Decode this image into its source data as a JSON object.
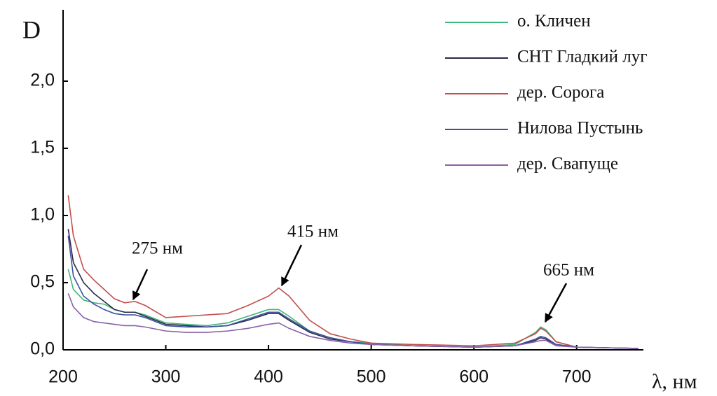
{
  "chart_data": {
    "type": "line",
    "y_label": "D",
    "x_label": "λ, нм",
    "annotations": [
      "275 нм",
      "415 нм",
      "665 нм"
    ],
    "x": [
      205,
      210,
      220,
      230,
      240,
      250,
      260,
      270,
      280,
      300,
      320,
      340,
      360,
      380,
      400,
      410,
      420,
      440,
      460,
      480,
      500,
      540,
      600,
      640,
      660,
      665,
      670,
      680,
      700,
      760
    ],
    "series": [
      {
        "name": "о. Кличен",
        "color": "#3cb878",
        "values": [
          0.6,
          0.45,
          0.37,
          0.35,
          0.34,
          0.3,
          0.28,
          0.28,
          0.26,
          0.2,
          0.19,
          0.18,
          0.2,
          0.25,
          0.3,
          0.3,
          0.25,
          0.14,
          0.09,
          0.06,
          0.05,
          0.03,
          0.02,
          0.04,
          0.13,
          0.17,
          0.15,
          0.06,
          0.02,
          0.01
        ]
      },
      {
        "name": "СНТ Гладкий луг",
        "color": "#2a2a48",
        "values": [
          0.9,
          0.65,
          0.5,
          0.42,
          0.36,
          0.3,
          0.28,
          0.28,
          0.25,
          0.19,
          0.18,
          0.17,
          0.18,
          0.22,
          0.27,
          0.27,
          0.22,
          0.13,
          0.08,
          0.06,
          0.04,
          0.03,
          0.02,
          0.03,
          0.07,
          0.09,
          0.08,
          0.04,
          0.02,
          0.01
        ]
      },
      {
        "name": "дер. Сорога",
        "color": "#c0504d",
        "values": [
          1.15,
          0.85,
          0.6,
          0.52,
          0.45,
          0.38,
          0.35,
          0.36,
          0.33,
          0.24,
          0.25,
          0.26,
          0.27,
          0.33,
          0.4,
          0.46,
          0.4,
          0.22,
          0.12,
          0.08,
          0.05,
          0.04,
          0.03,
          0.05,
          0.12,
          0.16,
          0.14,
          0.06,
          0.02,
          0.01
        ]
      },
      {
        "name": "Нилова Пустынь",
        "color": "#4050a0",
        "values": [
          0.85,
          0.55,
          0.4,
          0.34,
          0.3,
          0.27,
          0.26,
          0.26,
          0.24,
          0.18,
          0.17,
          0.17,
          0.18,
          0.23,
          0.28,
          0.28,
          0.23,
          0.14,
          0.09,
          0.06,
          0.04,
          0.03,
          0.02,
          0.03,
          0.08,
          0.1,
          0.09,
          0.04,
          0.02,
          0.01
        ]
      },
      {
        "name": "дер. Свапуще",
        "color": "#8a60a8",
        "values": [
          0.42,
          0.32,
          0.24,
          0.21,
          0.2,
          0.19,
          0.18,
          0.18,
          0.17,
          0.14,
          0.13,
          0.13,
          0.14,
          0.16,
          0.19,
          0.2,
          0.16,
          0.1,
          0.07,
          0.05,
          0.04,
          0.03,
          0.02,
          0.03,
          0.06,
          0.07,
          0.07,
          0.03,
          0.02,
          0.01
        ]
      }
    ],
    "xlim": [
      200,
      765
    ],
    "ylim": [
      0,
      2.5
    ],
    "xticks": [
      200,
      300,
      400,
      500,
      600,
      700
    ],
    "yticks": [
      {
        "value": 0,
        "label": "0,0"
      },
      {
        "value": 0.5,
        "label": "0,5"
      },
      {
        "value": 1,
        "label": "1,0"
      },
      {
        "value": 1.5,
        "label": "1,5"
      },
      {
        "value": 2,
        "label": "2,0"
      }
    ]
  }
}
